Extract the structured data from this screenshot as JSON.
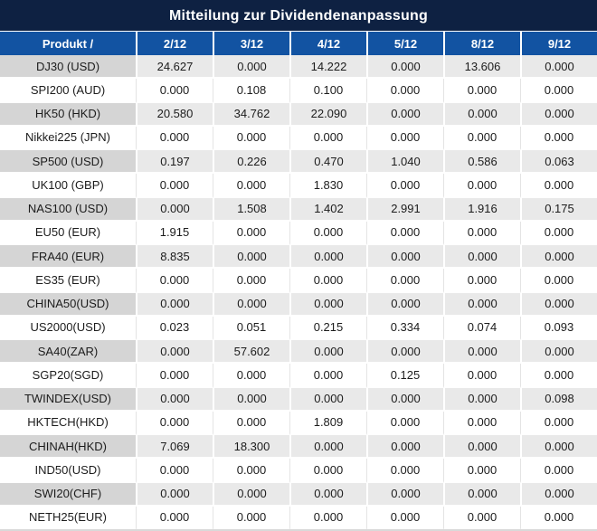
{
  "title": "Mitteilung zur Dividendenanpassung",
  "colors": {
    "title_bar_bg": "#0e2142",
    "header_bg": "#1253a2",
    "gray_row_bg": "#e9e9e9",
    "gray_row_product_bg": "#d5d5d5",
    "nonzero_value_color": "#e01f1f",
    "zero_value_color": "#1c1c1c"
  },
  "table": {
    "product_header": "Produkt /",
    "date_columns": [
      "2/12",
      "3/12",
      "4/12",
      "5/12",
      "8/12",
      "9/12"
    ],
    "rows": [
      {
        "product": "DJ30 (USD)",
        "values": [
          "24.627",
          "0.000",
          "14.222",
          "0.000",
          "13.606",
          "0.000"
        ]
      },
      {
        "product": "SPI200 (AUD)",
        "values": [
          "0.000",
          "0.108",
          "0.100",
          "0.000",
          "0.000",
          "0.000"
        ]
      },
      {
        "product": "HK50 (HKD)",
        "values": [
          "20.580",
          "34.762",
          "22.090",
          "0.000",
          "0.000",
          "0.000"
        ]
      },
      {
        "product": "Nikkei225 (JPN)",
        "values": [
          "0.000",
          "0.000",
          "0.000",
          "0.000",
          "0.000",
          "0.000"
        ]
      },
      {
        "product": "SP500 (USD)",
        "values": [
          "0.197",
          "0.226",
          "0.470",
          "1.040",
          "0.586",
          "0.063"
        ]
      },
      {
        "product": "UK100 (GBP)",
        "values": [
          "0.000",
          "0.000",
          "1.830",
          "0.000",
          "0.000",
          "0.000"
        ]
      },
      {
        "product": "NAS100 (USD)",
        "values": [
          "0.000",
          "1.508",
          "1.402",
          "2.991",
          "1.916",
          "0.175"
        ]
      },
      {
        "product": "EU50 (EUR)",
        "values": [
          "1.915",
          "0.000",
          "0.000",
          "0.000",
          "0.000",
          "0.000"
        ]
      },
      {
        "product": "FRA40 (EUR)",
        "values": [
          "8.835",
          "0.000",
          "0.000",
          "0.000",
          "0.000",
          "0.000"
        ]
      },
      {
        "product": "ES35 (EUR)",
        "values": [
          "0.000",
          "0.000",
          "0.000",
          "0.000",
          "0.000",
          "0.000"
        ]
      },
      {
        "product": "CHINA50(USD)",
        "values": [
          "0.000",
          "0.000",
          "0.000",
          "0.000",
          "0.000",
          "0.000"
        ]
      },
      {
        "product": "US2000(USD)",
        "values": [
          "0.023",
          "0.051",
          "0.215",
          "0.334",
          "0.074",
          "0.093"
        ]
      },
      {
        "product": "SA40(ZAR)",
        "values": [
          "0.000",
          "57.602",
          "0.000",
          "0.000",
          "0.000",
          "0.000"
        ]
      },
      {
        "product": "SGP20(SGD)",
        "values": [
          "0.000",
          "0.000",
          "0.000",
          "0.125",
          "0.000",
          "0.000"
        ]
      },
      {
        "product": "TWINDEX(USD)",
        "values": [
          "0.000",
          "0.000",
          "0.000",
          "0.000",
          "0.000",
          "0.098"
        ]
      },
      {
        "product": "HKTECH(HKD)",
        "values": [
          "0.000",
          "0.000",
          "1.809",
          "0.000",
          "0.000",
          "0.000"
        ]
      },
      {
        "product": "CHINAH(HKD)",
        "values": [
          "7.069",
          "18.300",
          "0.000",
          "0.000",
          "0.000",
          "0.000"
        ]
      },
      {
        "product": "IND50(USD)",
        "values": [
          "0.000",
          "0.000",
          "0.000",
          "0.000",
          "0.000",
          "0.000"
        ]
      },
      {
        "product": "SWI20(CHF)",
        "values": [
          "0.000",
          "0.000",
          "0.000",
          "0.000",
          "0.000",
          "0.000"
        ]
      },
      {
        "product": "NETH25(EUR)",
        "values": [
          "0.000",
          "0.000",
          "0.000",
          "0.000",
          "0.000",
          "0.000"
        ]
      }
    ]
  }
}
